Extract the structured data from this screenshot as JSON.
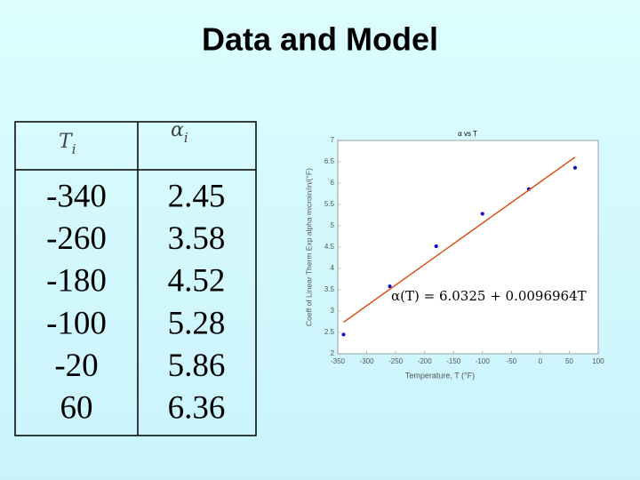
{
  "title": "Data and Model",
  "table": {
    "headers": [
      {
        "symbol": "T",
        "subscript": "i"
      },
      {
        "symbol": "α",
        "subscript": "i"
      }
    ],
    "rows": [
      [
        "-340",
        "2.45"
      ],
      [
        "-260",
        "3.58"
      ],
      [
        "-180",
        "4.52"
      ],
      [
        "-100",
        "5.28"
      ],
      [
        "-20",
        "5.86"
      ],
      [
        "60",
        "6.36"
      ]
    ]
  },
  "chart_data": {
    "type": "scatter",
    "title": "α vs T",
    "x_label": "Temperature, T (°F)",
    "y_label": "Coeff of Linear Therm Exp alpha microin/in/(°F)",
    "annotation": "α(T) = 6.0325 + 0.0096964T",
    "xlim": [
      -350,
      100
    ],
    "xticks": [
      -350,
      -300,
      -250,
      -200,
      -150,
      -100,
      -50,
      0,
      50,
      100
    ],
    "ylim": [
      2,
      7
    ],
    "yticks": [
      2,
      2.5,
      3,
      3.5,
      4,
      4.5,
      5,
      5.5,
      6,
      6.5,
      7
    ],
    "series": [
      {
        "name": "data",
        "color": "#0000cc",
        "x": [
          -340,
          -260,
          -180,
          -100,
          -20,
          60
        ],
        "values": [
          2.45,
          3.58,
          4.52,
          5.28,
          5.86,
          6.36
        ]
      },
      {
        "name": "fit",
        "color": "#d95319",
        "x": [
          -340,
          60
        ],
        "values": [
          2.74,
          6.61
        ]
      }
    ]
  }
}
